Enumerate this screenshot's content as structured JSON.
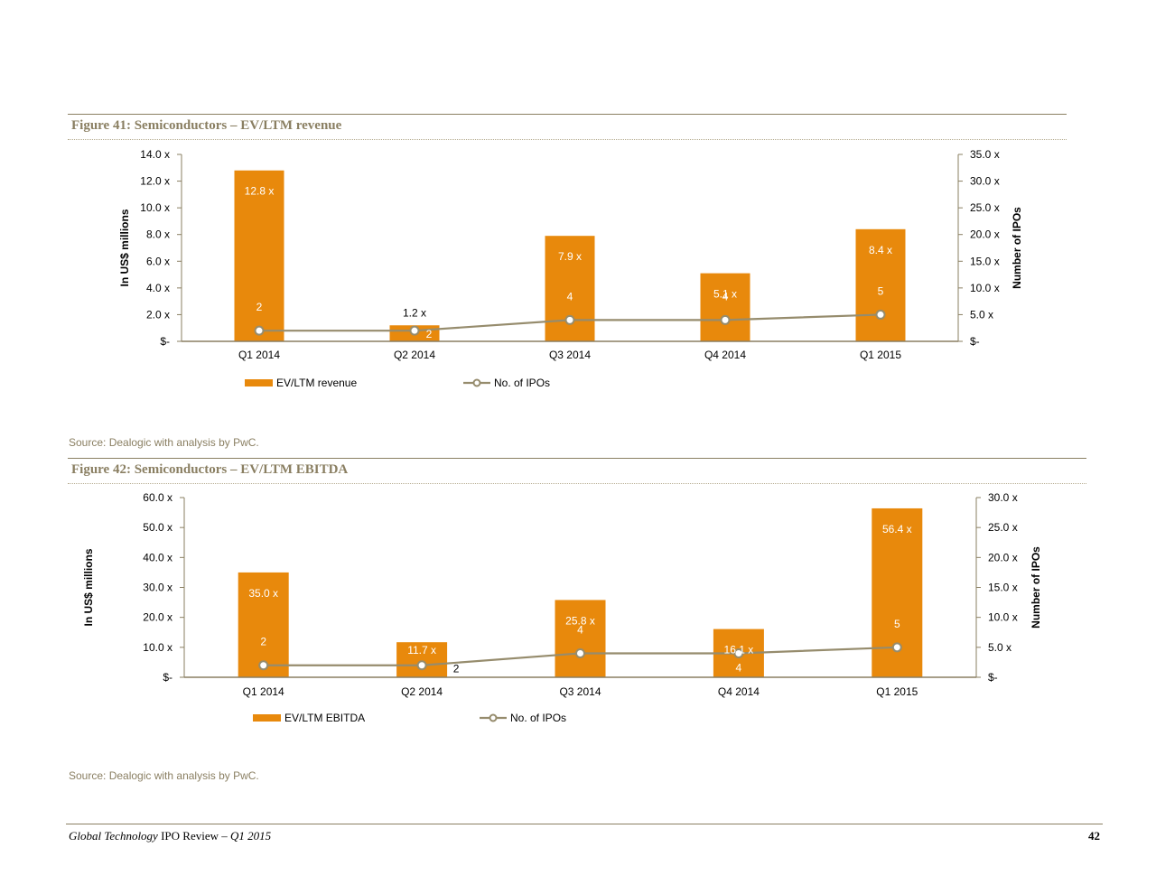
{
  "figures": [
    {
      "title": "Figure 41: Semiconductors – EV/LTM revenue",
      "source": "Source: Dealogic with analysis by PwC.",
      "chart_data": {
        "type": "bar",
        "categories": [
          "Q1 2014",
          "Q2 2014",
          "Q3 2014",
          "Q4 2014",
          "Q1 2015"
        ],
        "series": [
          {
            "name": "EV/LTM revenue",
            "type": "bar",
            "axis": "left",
            "values": [
              12.8,
              1.2,
              7.9,
              5.1,
              8.4
            ],
            "labels": [
              "12.8 x",
              "1.2 x",
              "7.9 x",
              "5.1 x",
              "8.4 x"
            ],
            "color": "#E8890C"
          },
          {
            "name": "No. of IPOs",
            "type": "line",
            "axis": "right",
            "values": [
              2,
              2,
              4,
              4,
              5
            ],
            "labels": [
              "2",
              "2",
              "4",
              "4",
              "5"
            ],
            "color": "#968C6D"
          }
        ],
        "ylabel": "In US$ millions",
        "y2label": "Number of IPOs",
        "ylim": [
          0,
          14
        ],
        "y2lim": [
          0,
          35
        ],
        "yticks": [
          "$-",
          "2.0 x",
          "4.0 x",
          "6.0 x",
          "8.0 x",
          "10.0 x",
          "12.0 x",
          "14.0 x"
        ],
        "y2ticks": [
          "$-",
          "5.0 x",
          "10.0 x",
          "15.0 x",
          "20.0 x",
          "25.0 x",
          "30.0 x",
          "35.0 x"
        ],
        "legend": "bottom-left",
        "grid": false
      }
    },
    {
      "title": "Figure 42: Semiconductors – EV/LTM EBITDA",
      "source": "Source: Dealogic with analysis by PwC.",
      "chart_data": {
        "type": "bar",
        "categories": [
          "Q1 2014",
          "Q2 2014",
          "Q3 2014",
          "Q4 2014",
          "Q1 2015"
        ],
        "series": [
          {
            "name": "EV/LTM EBITDA",
            "type": "bar",
            "axis": "left",
            "values": [
              35.0,
              11.7,
              25.8,
              16.1,
              56.4
            ],
            "labels": [
              "35.0 x",
              "11.7 x",
              "25.8 x",
              "16.1 x",
              "56.4 x"
            ],
            "color": "#E8890C"
          },
          {
            "name": "No. of IPOs",
            "type": "line",
            "axis": "right",
            "values": [
              2,
              2,
              4,
              4,
              5
            ],
            "labels": [
              "2",
              "2",
              "4",
              "4",
              "5"
            ],
            "color": "#968C6D"
          }
        ],
        "ylabel": "In US$ millions",
        "y2label": "Number of IPOs",
        "ylim": [
          0,
          60
        ],
        "y2lim": [
          0,
          30
        ],
        "yticks": [
          "$-",
          "10.0 x",
          "20.0 x",
          "30.0 x",
          "40.0 x",
          "50.0 x",
          "60.0 x"
        ],
        "y2ticks": [
          "$-",
          "5.0 x",
          "10.0 x",
          "15.0 x",
          "20.0 x",
          "25.0 x",
          "30.0 x"
        ],
        "legend": "bottom-left",
        "grid": false
      }
    }
  ],
  "footer": {
    "title_italic": "Global Technology",
    "title_middle": " IPO Review – ",
    "title_quarter": "Q1 2015",
    "page": "42"
  }
}
